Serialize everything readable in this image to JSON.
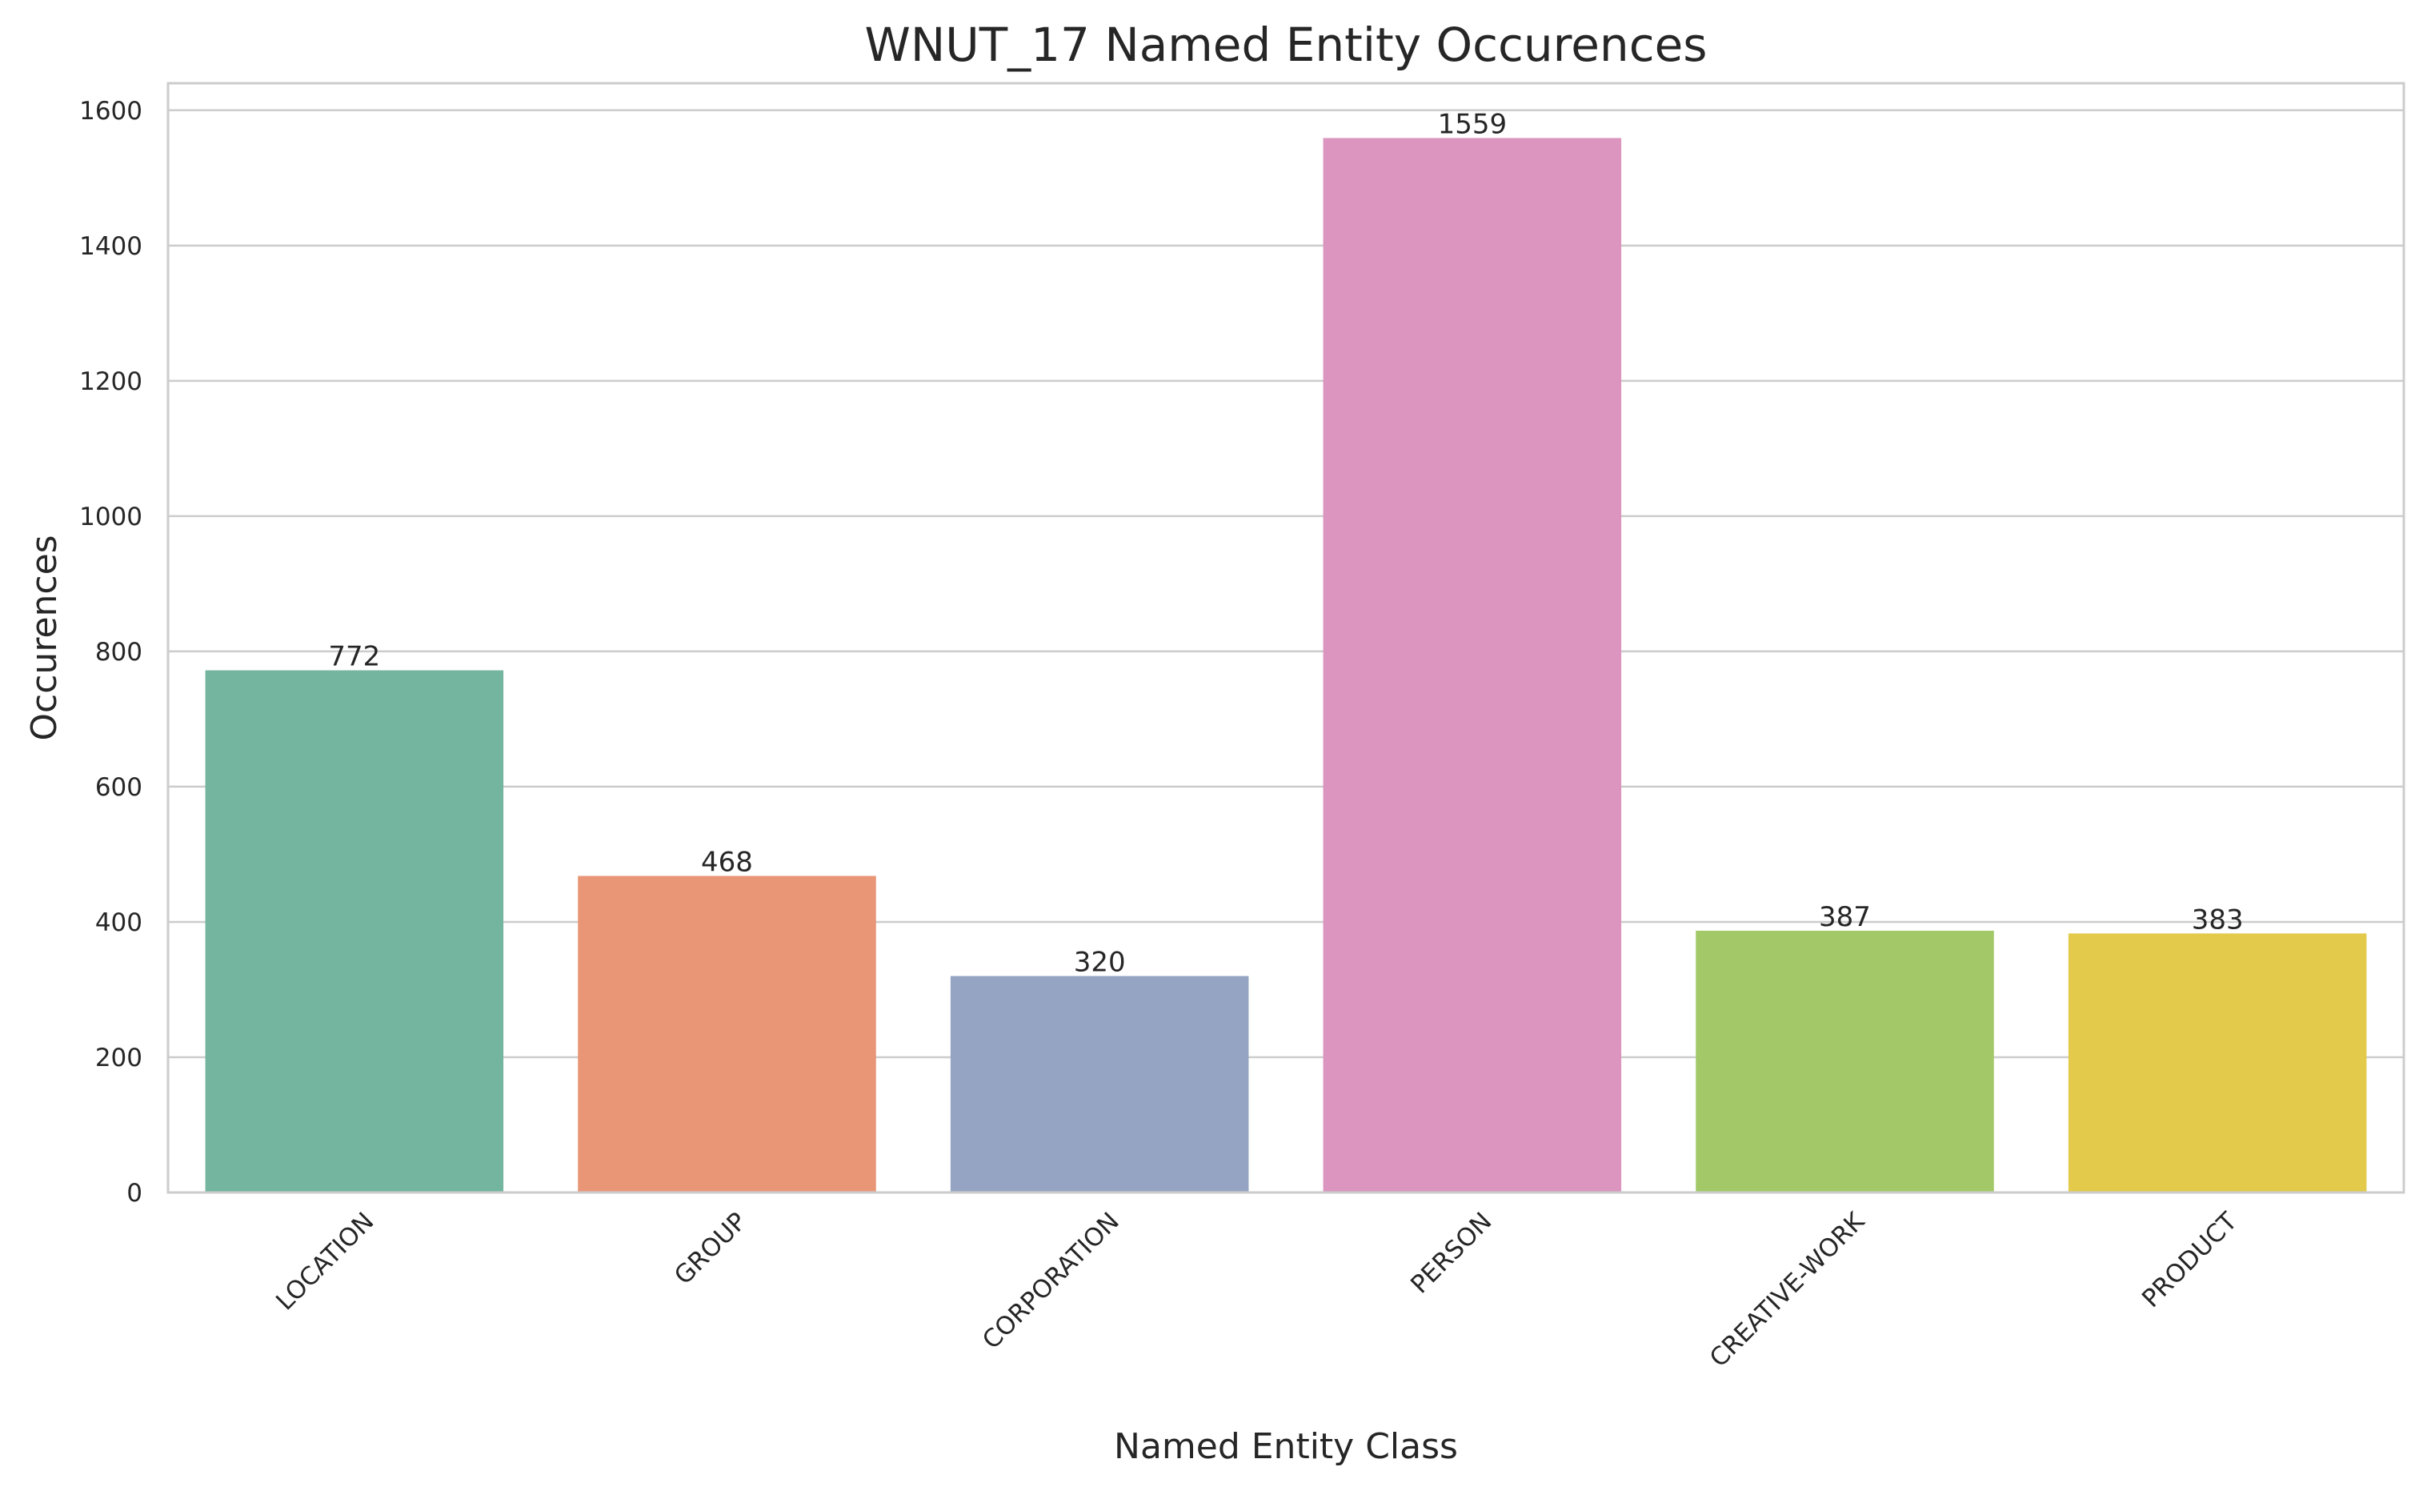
{
  "chart_data": {
    "type": "bar",
    "title": "WNUT_17 Named Entity Occurences",
    "xlabel": "Named Entity Class",
    "ylabel": "Occurences",
    "categories": [
      "LOCATION",
      "GROUP",
      "CORPORATION",
      "PERSON",
      "CREATIVE-WORK",
      "PRODUCT"
    ],
    "values": [
      772,
      468,
      320,
      1559,
      387,
      383
    ],
    "data_labels": [
      "772",
      "468",
      "320",
      "1559",
      "387",
      "383"
    ],
    "colors": [
      "#73b59f",
      "#e99677",
      "#95a4c3",
      "#db95bf",
      "#a2c868",
      "#e3ca4a"
    ],
    "ylim": [
      0,
      1640
    ],
    "yticks": [
      0,
      200,
      400,
      600,
      800,
      1000,
      1200,
      1400,
      1600
    ],
    "ytick_labels": [
      "0",
      "200",
      "400",
      "600",
      "800",
      "1000",
      "1200",
      "1400",
      "1600"
    ],
    "grid": "horizontal",
    "grid_color": "#cccccc",
    "axes_edge_color": "#cccccc",
    "text_color": "#262626",
    "x_tick_rotation_deg": 45
  }
}
